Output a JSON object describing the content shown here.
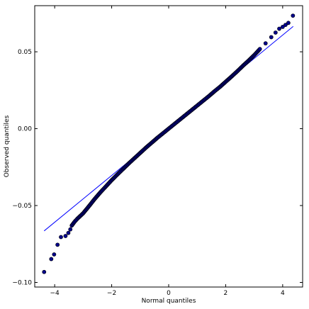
{
  "chart_data": {
    "type": "scatter",
    "title": "",
    "xlabel": "Normal quantiles",
    "ylabel": "Observed quantiles",
    "xlim": [
      -4.7,
      4.7
    ],
    "ylim": [
      -0.103,
      0.08
    ],
    "xticks": [
      -4,
      -2,
      0,
      2,
      4
    ],
    "xtick_labels": [
      "−4",
      "−2",
      "0",
      "2",
      "4"
    ],
    "yticks": [
      -0.1,
      -0.05,
      0.0,
      0.05
    ],
    "ytick_labels": [
      "−0.10",
      "−0.05",
      "0.00",
      "0.05"
    ],
    "grid": false,
    "legend": "none",
    "series": [
      {
        "kind": "points",
        "color": "#00008b",
        "edge_color": "#000000",
        "points": [
          [
            -4.37,
            -0.0932
          ],
          [
            -4.12,
            -0.0848
          ],
          [
            -4.02,
            -0.0818
          ],
          [
            -3.9,
            -0.0755
          ],
          [
            -3.78,
            -0.0705
          ],
          [
            -3.62,
            -0.0698
          ],
          [
            -3.52,
            -0.0678
          ],
          [
            -3.45,
            -0.0655
          ],
          [
            -3.4,
            -0.063
          ],
          [
            -3.3,
            -0.0605
          ],
          [
            -3.2,
            -0.0585
          ],
          [
            -3.0,
            -0.055
          ],
          [
            -2.8,
            -0.0505
          ],
          [
            -2.6,
            -0.0458
          ],
          [
            -2.4,
            -0.0415
          ],
          [
            -2.2,
            -0.0375
          ],
          [
            -2.0,
            -0.0335
          ],
          [
            -1.8,
            -0.0298
          ],
          [
            -1.6,
            -0.0262
          ],
          [
            -1.4,
            -0.0226
          ],
          [
            -1.2,
            -0.0192
          ],
          [
            -1.0,
            -0.0158
          ],
          [
            -0.8,
            -0.0124
          ],
          [
            -0.6,
            -0.0092
          ],
          [
            -0.4,
            -0.006
          ],
          [
            -0.2,
            -0.003
          ],
          [
            0.0,
            0.0
          ],
          [
            0.2,
            0.003
          ],
          [
            0.4,
            0.006
          ],
          [
            0.6,
            0.009
          ],
          [
            0.8,
            0.012
          ],
          [
            1.0,
            0.015
          ],
          [
            1.2,
            0.018
          ],
          [
            1.4,
            0.021
          ],
          [
            1.6,
            0.0242
          ],
          [
            1.8,
            0.0272
          ],
          [
            2.0,
            0.0305
          ],
          [
            2.2,
            0.0338
          ],
          [
            2.4,
            0.0372
          ],
          [
            2.6,
            0.0408
          ],
          [
            2.8,
            0.0442
          ],
          [
            3.0,
            0.0478
          ],
          [
            3.2,
            0.0518
          ],
          [
            3.4,
            0.0555
          ],
          [
            3.6,
            0.0595
          ],
          [
            3.75,
            0.0625
          ],
          [
            3.88,
            0.065
          ],
          [
            4.0,
            0.0662
          ],
          [
            4.1,
            0.0675
          ],
          [
            4.2,
            0.0688
          ],
          [
            4.36,
            0.0735
          ]
        ]
      },
      {
        "kind": "reference-line",
        "color": "#0000ff",
        "points": [
          [
            -4.37,
            -0.0665
          ],
          [
            4.37,
            0.0665
          ]
        ]
      }
    ]
  }
}
